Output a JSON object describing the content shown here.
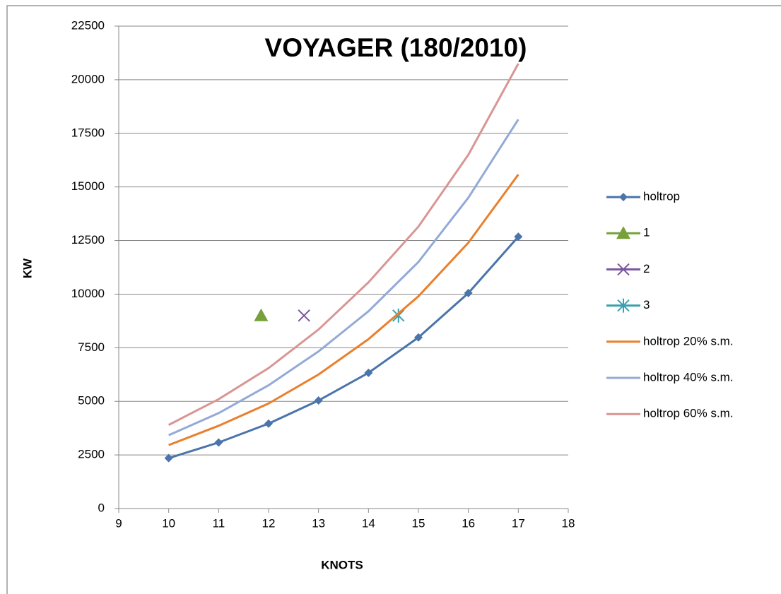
{
  "chart_data": {
    "type": "line",
    "title": "VOYAGER (180/2010)",
    "x_label": "KNOTS",
    "y_label": "KW",
    "xlim": [
      9,
      18
    ],
    "xticks": [
      9,
      10,
      11,
      12,
      13,
      14,
      15,
      16,
      17,
      18
    ],
    "ylim": [
      0,
      22500
    ],
    "yticks": [
      0,
      2500,
      5000,
      7500,
      10000,
      12500,
      15000,
      17500,
      20000,
      22500
    ],
    "grid": true,
    "legend": "right",
    "series": [
      {
        "name": "holtrop",
        "color": "#4a74aa",
        "line": true,
        "marker": "diamond",
        "x": [
          10,
          11,
          12,
          13,
          14,
          15,
          16,
          17
        ],
        "values": [
          2350,
          3080,
          3960,
          5040,
          6330,
          7980,
          10050,
          12680
        ]
      },
      {
        "name": "1",
        "color": "#77a03c",
        "line": false,
        "marker": "triangle",
        "x": [
          11.85
        ],
        "values": [
          9000
        ]
      },
      {
        "name": "2",
        "color": "#7a559e",
        "line": false,
        "marker": "cross",
        "x": [
          12.71
        ],
        "values": [
          9000
        ]
      },
      {
        "name": "3",
        "color": "#3aa0b0",
        "line": false,
        "marker": "star",
        "x": [
          14.6
        ],
        "values": [
          9000
        ]
      },
      {
        "name": "holtrop 20% s.m.",
        "color": "#ea7f2c",
        "line": true,
        "marker": "none",
        "x": [
          10,
          11,
          12,
          13,
          14,
          15,
          16,
          17
        ],
        "values": [
          2960,
          3860,
          4900,
          6250,
          7900,
          9900,
          12400,
          15580
        ]
      },
      {
        "name": "holtrop 40% s.m.",
        "color": "#93aad6",
        "line": true,
        "marker": "none",
        "x": [
          10,
          11,
          12,
          13,
          14,
          15,
          16,
          17
        ],
        "values": [
          3420,
          4450,
          5750,
          7330,
          9200,
          11500,
          14500,
          18150
        ]
      },
      {
        "name": "holtrop 60% s.m.",
        "color": "#d99593",
        "line": true,
        "marker": "none",
        "x": [
          10,
          11,
          12,
          13,
          14,
          15,
          16,
          17
        ],
        "values": [
          3900,
          5100,
          6550,
          8350,
          10550,
          13150,
          16500,
          20750
        ]
      }
    ]
  }
}
